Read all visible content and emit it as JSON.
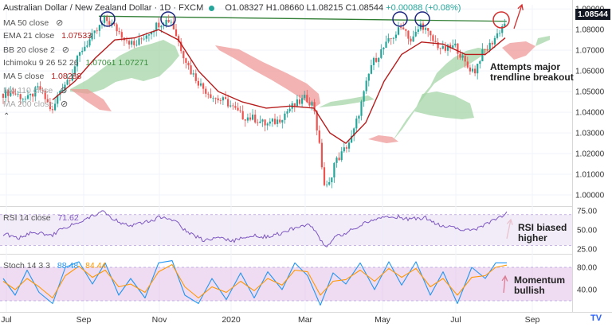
{
  "header": {
    "title": "Australian Dollar / New Zealand Dollar · 1D · FXCM",
    "ohlc": "O1.08327 H1.08660 L1.08215 C1.08544",
    "change": "+0.00088 (+0.08%)"
  },
  "indicators": [
    {
      "label": "MA 50 close",
      "value": "",
      "color": "#26a69a"
    },
    {
      "label": "EMA 21 close",
      "value": "1.07533",
      "color": "#b71c1c"
    },
    {
      "label": "BB 20 close 2",
      "value": "",
      "color": "#555555"
    },
    {
      "label": "Ichimoku 9 26 52 26",
      "value": "1.07061  1.07271",
      "color": "#388e3c"
    },
    {
      "label": "MA 5 close",
      "value": "1.08288",
      "color": "#b71c1c"
    },
    {
      "label": "MA 110 close",
      "value": "",
      "color": "#999999"
    },
    {
      "label": "MA 200 close",
      "value": "",
      "color": "#999999"
    }
  ],
  "rsi_label": {
    "label": "RSI 14 close",
    "value": "71.62"
  },
  "stoch_label": {
    "label": "Stoch 14 3 3",
    "k": "88.48",
    "d": "84.44"
  },
  "current_price": "1.08544",
  "annotations": {
    "breakout": [
      "Attempts major",
      "trendline breakout"
    ],
    "rsi": [
      "RSI biased",
      "higher"
    ],
    "stoch": [
      "Momentum",
      "bullish"
    ]
  },
  "colors": {
    "up": "#26a69a",
    "down": "#ef5350",
    "ema21": "#b71c1c",
    "trendline": "#2e7d32",
    "rsi": "#7e57c2",
    "stoch_k": "#2196f3",
    "stoch_d": "#ff9800",
    "cloud_bull": "#a5d6a7",
    "cloud_bear": "#ef9a9a",
    "circle_blue": "#1a237e",
    "circle_red": "#d32f2f"
  },
  "chart_data": [
    {
      "type": "candlestick",
      "title": "Australian Dollar / New Zealand Dollar · 1D · FXCM",
      "x_labels": [
        "Jul",
        "Sep",
        "Nov",
        "2020",
        "Mar",
        "May",
        "Jul",
        "Sep"
      ],
      "yticks": [
        "1.09000",
        "1.08000",
        "1.07000",
        "1.06000",
        "1.05000",
        "1.04000",
        "1.03000",
        "1.02000",
        "1.01000",
        "1.00000"
      ],
      "ylim": [
        0.995,
        1.092
      ],
      "price_path": [
        [
          0,
          1.049
        ],
        [
          10,
          1.05
        ],
        [
          20,
          1.048
        ],
        [
          30,
          1.046
        ],
        [
          45,
          1.052
        ],
        [
          55,
          1.045
        ],
        [
          62,
          1.04
        ],
        [
          70,
          1.05
        ],
        [
          85,
          1.058
        ],
        [
          98,
          1.07
        ],
        [
          115,
          1.078
        ],
        [
          128,
          1.085
        ],
        [
          138,
          1.082
        ],
        [
          150,
          1.077
        ],
        [
          165,
          1.072
        ],
        [
          180,
          1.078
        ],
        [
          195,
          1.083
        ],
        [
          210,
          1.085
        ],
        [
          222,
          1.072
        ],
        [
          235,
          1.06
        ],
        [
          250,
          1.052
        ],
        [
          265,
          1.047
        ],
        [
          280,
          1.045
        ],
        [
          300,
          1.038
        ],
        [
          315,
          1.037
        ],
        [
          330,
          1.034
        ],
        [
          345,
          1.036
        ],
        [
          360,
          1.042
        ],
        [
          380,
          1.047
        ],
        [
          390,
          1.043
        ],
        [
          398,
          1.02
        ],
        [
          403,
          1.005
        ],
        [
          408,
          1.003
        ],
        [
          415,
          1.015
        ],
        [
          425,
          1.02
        ],
        [
          438,
          1.028
        ],
        [
          450,
          1.045
        ],
        [
          462,
          1.063
        ],
        [
          475,
          1.07
        ],
        [
          490,
          1.077
        ],
        [
          502,
          1.082
        ],
        [
          512,
          1.074
        ],
        [
          525,
          1.083
        ],
        [
          538,
          1.075
        ],
        [
          552,
          1.07
        ],
        [
          568,
          1.072
        ],
        [
          582,
          1.062
        ],
        [
          592,
          1.06
        ],
        [
          600,
          1.068
        ],
        [
          610,
          1.072
        ],
        [
          622,
          1.079
        ],
        [
          632,
          1.085
        ]
      ],
      "ema21_path": [
        [
          62,
          1.046
        ],
        [
          90,
          1.055
        ],
        [
          115,
          1.066
        ],
        [
          140,
          1.075
        ],
        [
          165,
          1.076
        ],
        [
          195,
          1.08
        ],
        [
          220,
          1.075
        ],
        [
          245,
          1.06
        ],
        [
          270,
          1.05
        ],
        [
          300,
          1.045
        ],
        [
          330,
          1.042
        ],
        [
          360,
          1.043
        ],
        [
          390,
          1.042
        ],
        [
          410,
          1.03
        ],
        [
          430,
          1.025
        ],
        [
          455,
          1.035
        ],
        [
          478,
          1.055
        ],
        [
          500,
          1.068
        ],
        [
          525,
          1.074
        ],
        [
          552,
          1.073
        ],
        [
          580,
          1.068
        ],
        [
          605,
          1.068
        ],
        [
          630,
          1.076
        ]
      ],
      "trendline": {
        "x": [
          120,
          632
        ],
        "y": [
          1.0865,
          1.084
        ]
      },
      "last": 1.08544
    },
    {
      "type": "line",
      "title": "RSI 14 close",
      "yticks": [
        75,
        50,
        25
      ],
      "ylim": [
        20,
        78
      ],
      "bands": [
        30,
        70
      ],
      "series": [
        {
          "name": "RSI 14 close",
          "points": [
            [
              0,
              45
            ],
            [
              20,
              40
            ],
            [
              40,
              48
            ],
            [
              60,
              42
            ],
            [
              75,
              52
            ],
            [
              90,
              58
            ],
            [
              110,
              68
            ],
            [
              125,
              74
            ],
            [
              140,
              63
            ],
            [
              160,
              55
            ],
            [
              180,
              60
            ],
            [
              200,
              68
            ],
            [
              215,
              62
            ],
            [
              230,
              48
            ],
            [
              250,
              37
            ],
            [
              270,
              40
            ],
            [
              290,
              36
            ],
            [
              310,
              43
            ],
            [
              330,
              41
            ],
            [
              350,
              46
            ],
            [
              370,
              55
            ],
            [
              385,
              58
            ],
            [
              395,
              42
            ],
            [
              405,
              26
            ],
            [
              415,
              40
            ],
            [
              430,
              46
            ],
            [
              450,
              58
            ],
            [
              470,
              64
            ],
            [
              490,
              68
            ],
            [
              510,
              64
            ],
            [
              530,
              66
            ],
            [
              550,
              55
            ],
            [
              570,
              52
            ],
            [
              590,
              50
            ],
            [
              610,
              60
            ],
            [
              625,
              68
            ],
            [
              632,
              72
            ]
          ]
        }
      ]
    },
    {
      "type": "line",
      "title": "Stoch 14 3 3",
      "yticks": [
        80,
        40
      ],
      "ylim": [
        0,
        100
      ],
      "bands": [
        20,
        80
      ],
      "series": [
        {
          "name": "%K",
          "points": [
            [
              0,
              60
            ],
            [
              15,
              30
            ],
            [
              30,
              75
            ],
            [
              45,
              35
            ],
            [
              62,
              15
            ],
            [
              78,
              80
            ],
            [
              95,
              90
            ],
            [
              112,
              50
            ],
            [
              128,
              88
            ],
            [
              145,
              30
            ],
            [
              160,
              60
            ],
            [
              178,
              25
            ],
            [
              195,
              88
            ],
            [
              212,
              92
            ],
            [
              228,
              30
            ],
            [
              245,
              15
            ],
            [
              262,
              60
            ],
            [
              280,
              22
            ],
            [
              298,
              70
            ],
            [
              315,
              25
            ],
            [
              332,
              72
            ],
            [
              350,
              40
            ],
            [
              366,
              88
            ],
            [
              382,
              65
            ],
            [
              398,
              12
            ],
            [
              414,
              70
            ],
            [
              430,
              50
            ],
            [
              448,
              88
            ],
            [
              466,
              40
            ],
            [
              484,
              90
            ],
            [
              500,
              48
            ],
            [
              518,
              90
            ],
            [
              536,
              30
            ],
            [
              552,
              72
            ],
            [
              570,
              15
            ],
            [
              588,
              80
            ],
            [
              605,
              60
            ],
            [
              618,
              88
            ],
            [
              632,
              88
            ]
          ]
        },
        {
          "name": "%D",
          "points": [
            [
              0,
              55
            ],
            [
              15,
              40
            ],
            [
              30,
              60
            ],
            [
              45,
              45
            ],
            [
              62,
              25
            ],
            [
              78,
              65
            ],
            [
              95,
              82
            ],
            [
              112,
              62
            ],
            [
              128,
              75
            ],
            [
              145,
              45
            ],
            [
              160,
              50
            ],
            [
              178,
              35
            ],
            [
              195,
              72
            ],
            [
              212,
              85
            ],
            [
              228,
              45
            ],
            [
              245,
              25
            ],
            [
              262,
              45
            ],
            [
              280,
              35
            ],
            [
              298,
              55
            ],
            [
              315,
              38
            ],
            [
              332,
              60
            ],
            [
              350,
              48
            ],
            [
              366,
              75
            ],
            [
              382,
              72
            ],
            [
              398,
              30
            ],
            [
              414,
              55
            ],
            [
              430,
              58
            ],
            [
              448,
              75
            ],
            [
              466,
              55
            ],
            [
              484,
              78
            ],
            [
              500,
              62
            ],
            [
              518,
              78
            ],
            [
              536,
              45
            ],
            [
              552,
              60
            ],
            [
              570,
              30
            ],
            [
              588,
              62
            ],
            [
              605,
              65
            ],
            [
              618,
              80
            ],
            [
              632,
              84
            ]
          ]
        }
      ]
    }
  ]
}
